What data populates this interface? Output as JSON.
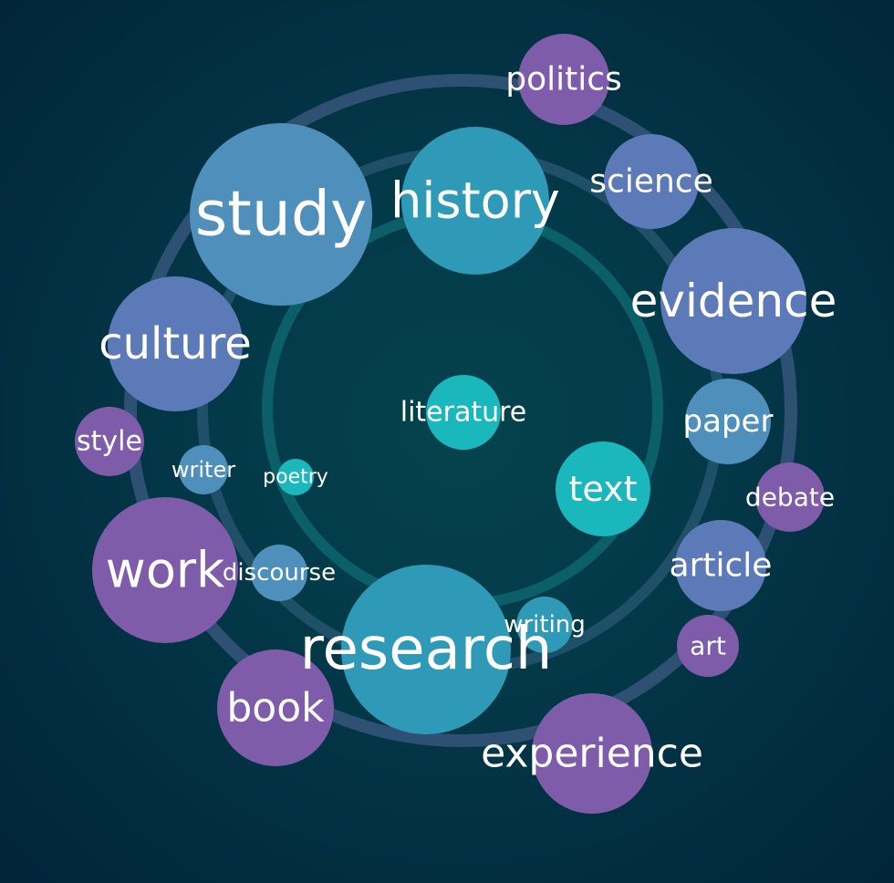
{
  "colors": {
    "background": "#022b3e",
    "ring_outer": "#2d5073",
    "ring_middle": "#1f5068",
    "ring_inner": "#0a5f68",
    "teal": "#1ab8bd",
    "blue_teal": "#2f9ab8",
    "steel_blue": "#4e8fbb",
    "slate_blue": "#5c7ab8",
    "purple": "#7e5caa",
    "text": "#ffffff"
  },
  "words": [
    {
      "id": "politics",
      "label": "politics",
      "color": "purple"
    },
    {
      "id": "study",
      "label": "study",
      "color": "steel_blue"
    },
    {
      "id": "history",
      "label": "history",
      "color": "blue_teal"
    },
    {
      "id": "science",
      "label": "science",
      "color": "slate_blue"
    },
    {
      "id": "evidence",
      "label": "evidence",
      "color": "slate_blue"
    },
    {
      "id": "culture",
      "label": "culture",
      "color": "slate_blue"
    },
    {
      "id": "literature",
      "label": "literature",
      "color": "teal"
    },
    {
      "id": "paper",
      "label": "paper",
      "color": "steel_blue"
    },
    {
      "id": "style",
      "label": "style",
      "color": "purple"
    },
    {
      "id": "writer",
      "label": "writer",
      "color": "steel_blue"
    },
    {
      "id": "poetry",
      "label": "poetry",
      "color": "teal"
    },
    {
      "id": "text",
      "label": "text",
      "color": "teal"
    },
    {
      "id": "debate",
      "label": "debate",
      "color": "purple"
    },
    {
      "id": "work",
      "label": "work",
      "color": "purple"
    },
    {
      "id": "discourse",
      "label": "discourse",
      "color": "steel_blue"
    },
    {
      "id": "article",
      "label": "article",
      "color": "slate_blue"
    },
    {
      "id": "research",
      "label": "research",
      "color": "blue_teal"
    },
    {
      "id": "writing",
      "label": "writing",
      "color": "blue_teal"
    },
    {
      "id": "art",
      "label": "art",
      "color": "purple"
    },
    {
      "id": "book",
      "label": "book",
      "color": "purple"
    },
    {
      "id": "experience",
      "label": "experience",
      "color": "purple"
    }
  ]
}
